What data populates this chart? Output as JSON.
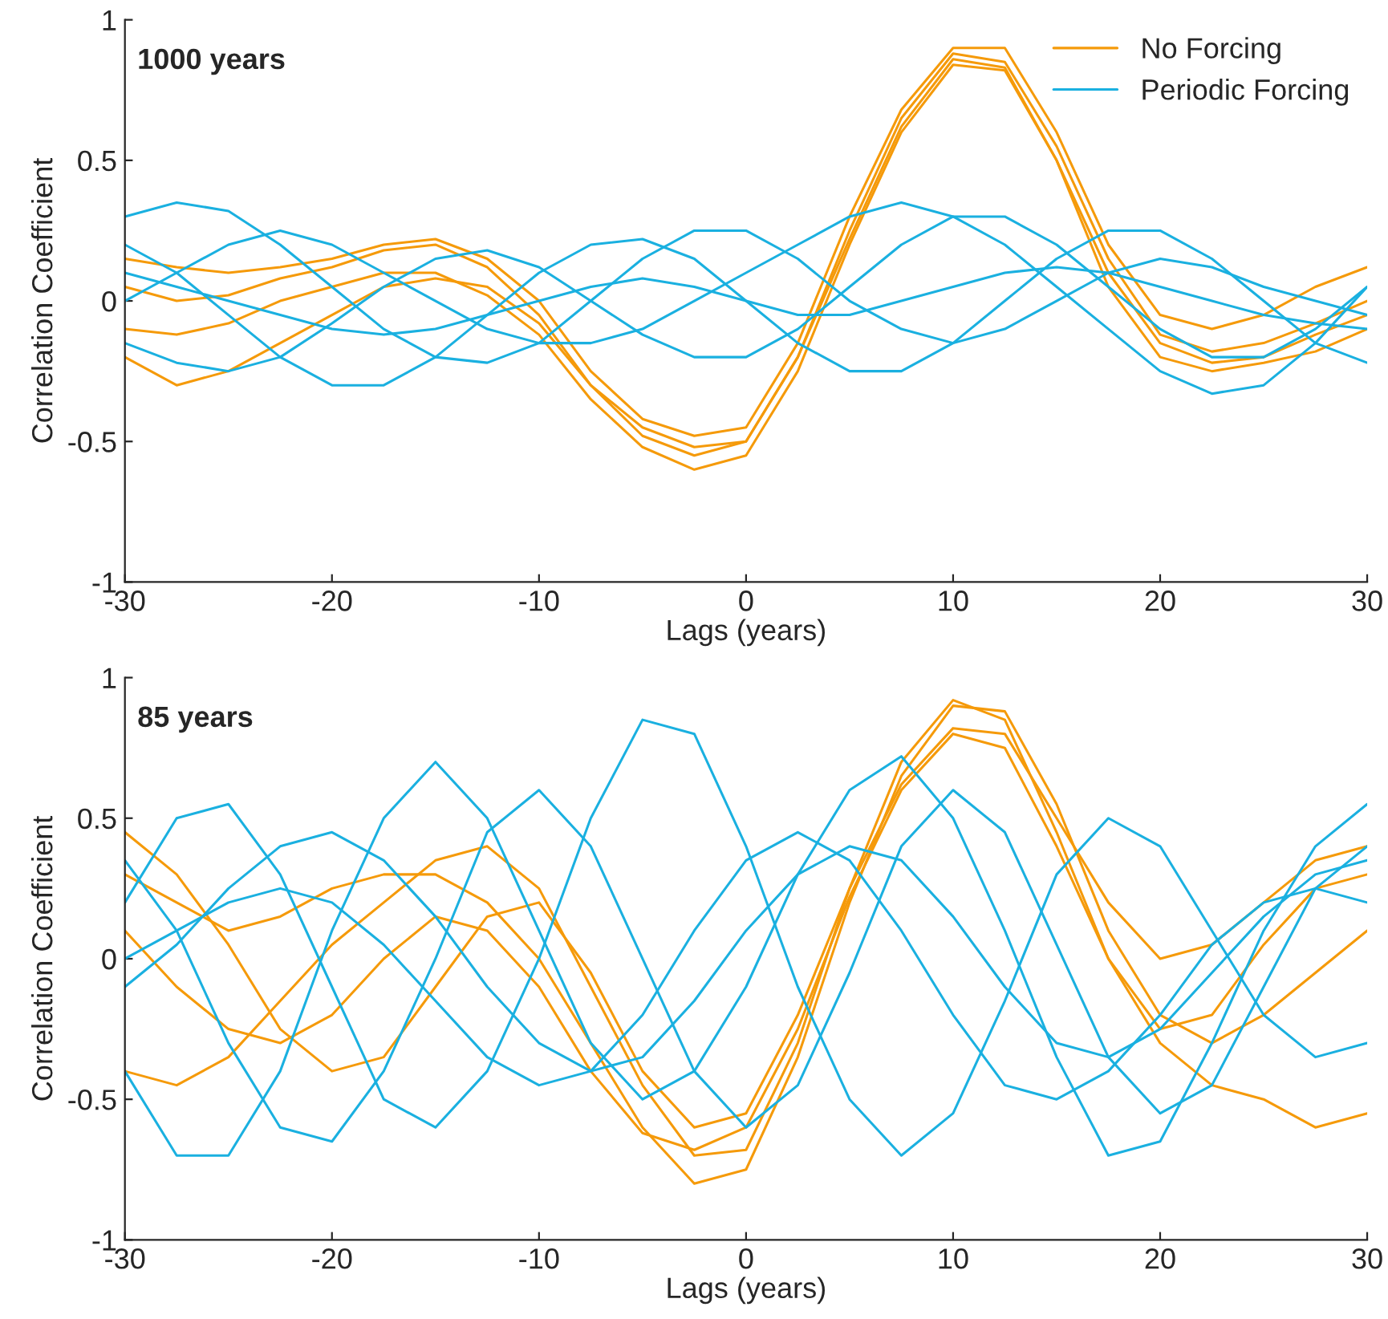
{
  "chart_data": [
    {
      "type": "line",
      "annotations": [
        "1000 years"
      ],
      "xlabel": "Lags (years)",
      "ylabel": "Correlation Coefficient",
      "xlim": [
        -30,
        30
      ],
      "ylim": [
        -1,
        1
      ],
      "xticks": [
        -30,
        -20,
        -10,
        0,
        10,
        20,
        30
      ],
      "yticks": [
        -1,
        -0.5,
        0,
        0.5,
        1
      ],
      "grid": false,
      "legend": "top right",
      "line_style": "solid",
      "x": [
        -30,
        -27.5,
        -25,
        -22.5,
        -20,
        -17.5,
        -15,
        -12.5,
        -10,
        -7.5,
        -5,
        -2.5,
        0,
        2.5,
        5,
        7.5,
        10,
        12.5,
        15,
        17.5,
        20,
        22.5,
        25,
        27.5,
        30
      ],
      "series": [
        {
          "name": "No Forcing",
          "color": "#f59a0a",
          "values": [
            0.05,
            0.0,
            0.02,
            0.08,
            0.12,
            0.18,
            0.2,
            0.12,
            -0.05,
            -0.3,
            -0.48,
            -0.55,
            -0.5,
            -0.2,
            0.25,
            0.65,
            0.88,
            0.85,
            0.55,
            0.15,
            -0.12,
            -0.18,
            -0.15,
            -0.08,
            0.0
          ]
        },
        {
          "color": "#f59a0a",
          "values": [
            -0.1,
            -0.12,
            -0.08,
            0.0,
            0.05,
            0.1,
            0.1,
            0.02,
            -0.12,
            -0.35,
            -0.52,
            -0.6,
            -0.55,
            -0.25,
            0.2,
            0.6,
            0.84,
            0.82,
            0.5,
            0.1,
            -0.15,
            -0.22,
            -0.2,
            -0.12,
            -0.05
          ]
        },
        {
          "color": "#f59a0a",
          "values": [
            0.15,
            0.12,
            0.1,
            0.12,
            0.15,
            0.2,
            0.22,
            0.15,
            0.0,
            -0.25,
            -0.42,
            -0.48,
            -0.45,
            -0.15,
            0.3,
            0.68,
            0.9,
            0.9,
            0.6,
            0.2,
            -0.05,
            -0.1,
            -0.05,
            0.05,
            0.12
          ]
        },
        {
          "color": "#f59a0a",
          "values": [
            -0.2,
            -0.3,
            -0.25,
            -0.15,
            -0.05,
            0.05,
            0.08,
            0.05,
            -0.08,
            -0.3,
            -0.45,
            -0.52,
            -0.5,
            -0.2,
            0.22,
            0.62,
            0.86,
            0.83,
            0.5,
            0.05,
            -0.2,
            -0.25,
            -0.22,
            -0.18,
            -0.1
          ]
        },
        {
          "name": "Periodic Forcing",
          "color": "#1ab0e0",
          "values": [
            0.3,
            0.35,
            0.32,
            0.2,
            0.05,
            -0.1,
            -0.2,
            -0.22,
            -0.15,
            0.0,
            0.15,
            0.25,
            0.25,
            0.15,
            0.0,
            -0.1,
            -0.15,
            -0.1,
            0.0,
            0.1,
            0.15,
            0.12,
            0.05,
            0.0,
            -0.05
          ]
        },
        {
          "color": "#1ab0e0",
          "values": [
            -0.15,
            -0.22,
            -0.25,
            -0.2,
            -0.08,
            0.05,
            0.15,
            0.18,
            0.12,
            0.0,
            -0.12,
            -0.2,
            -0.2,
            -0.1,
            0.05,
            0.2,
            0.3,
            0.3,
            0.2,
            0.05,
            -0.1,
            -0.2,
            -0.2,
            -0.1,
            0.05
          ]
        },
        {
          "color": "#1ab0e0",
          "values": [
            0.1,
            0.05,
            0.0,
            -0.05,
            -0.1,
            -0.12,
            -0.1,
            -0.05,
            0.0,
            0.05,
            0.08,
            0.05,
            0.0,
            -0.05,
            -0.05,
            0.0,
            0.05,
            0.1,
            0.12,
            0.1,
            0.05,
            0.0,
            -0.05,
            -0.08,
            -0.1
          ]
        },
        {
          "color": "#1ab0e0",
          "values": [
            0.2,
            0.1,
            -0.05,
            -0.2,
            -0.3,
            -0.3,
            -0.2,
            -0.05,
            0.1,
            0.2,
            0.22,
            0.15,
            0.0,
            -0.15,
            -0.25,
            -0.25,
            -0.15,
            0.0,
            0.15,
            0.25,
            0.25,
            0.15,
            0.0,
            -0.15,
            -0.22
          ]
        },
        {
          "color": "#1ab0e0",
          "values": [
            0.0,
            0.1,
            0.2,
            0.25,
            0.2,
            0.1,
            0.0,
            -0.1,
            -0.15,
            -0.15,
            -0.1,
            0.0,
            0.1,
            0.2,
            0.3,
            0.35,
            0.3,
            0.2,
            0.05,
            -0.1,
            -0.25,
            -0.33,
            -0.3,
            -0.15,
            0.05
          ]
        }
      ]
    },
    {
      "type": "line",
      "annotations": [
        "85 years"
      ],
      "xlabel": "Lags (years)",
      "ylabel": "Correlation Coefficient",
      "xlim": [
        -30,
        30
      ],
      "ylim": [
        -1,
        1
      ],
      "xticks": [
        -30,
        -20,
        -10,
        0,
        10,
        20,
        30
      ],
      "yticks": [
        -1,
        -0.5,
        0,
        0.5,
        1
      ],
      "grid": false,
      "line_style": "solid",
      "x": [
        -30,
        -27.5,
        -25,
        -22.5,
        -20,
        -17.5,
        -15,
        -12.5,
        -10,
        -7.5,
        -5,
        -2.5,
        0,
        2.5,
        5,
        7.5,
        10,
        12.5,
        15,
        17.5,
        20,
        22.5,
        25,
        27.5,
        30
      ],
      "series": [
        {
          "color": "#f59a0a",
          "values": [
            0.3,
            0.2,
            0.1,
            0.15,
            0.25,
            0.3,
            0.3,
            0.2,
            0.0,
            -0.3,
            -0.6,
            -0.8,
            -0.75,
            -0.35,
            0.2,
            0.65,
            0.9,
            0.88,
            0.55,
            0.1,
            -0.2,
            -0.3,
            -0.2,
            -0.05,
            0.1
          ]
        },
        {
          "color": "#f59a0a",
          "values": [
            -0.4,
            -0.45,
            -0.35,
            -0.15,
            0.05,
            0.2,
            0.35,
            0.4,
            0.25,
            -0.1,
            -0.45,
            -0.7,
            -0.68,
            -0.3,
            0.25,
            0.7,
            0.92,
            0.85,
            0.45,
            0.0,
            -0.3,
            -0.45,
            -0.5,
            -0.6,
            -0.55
          ]
        },
        {
          "color": "#f59a0a",
          "values": [
            0.1,
            -0.1,
            -0.25,
            -0.3,
            -0.2,
            0.0,
            0.15,
            0.1,
            -0.1,
            -0.4,
            -0.62,
            -0.68,
            -0.6,
            -0.25,
            0.22,
            0.6,
            0.8,
            0.75,
            0.4,
            0.0,
            -0.25,
            -0.2,
            0.05,
            0.25,
            0.3
          ]
        },
        {
          "color": "#f59a0a",
          "values": [
            0.45,
            0.3,
            0.05,
            -0.25,
            -0.4,
            -0.35,
            -0.1,
            0.15,
            0.2,
            -0.05,
            -0.4,
            -0.6,
            -0.55,
            -0.2,
            0.25,
            0.62,
            0.82,
            0.8,
            0.5,
            0.2,
            0.0,
            0.05,
            0.2,
            0.35,
            0.4
          ]
        },
        {
          "color": "#1ab0e0",
          "values": [
            0.2,
            0.5,
            0.55,
            0.3,
            -0.1,
            -0.5,
            -0.6,
            -0.4,
            0.0,
            0.5,
            0.85,
            0.8,
            0.4,
            -0.1,
            -0.5,
            -0.7,
            -0.55,
            -0.15,
            0.3,
            0.5,
            0.4,
            0.1,
            -0.2,
            -0.35,
            -0.3
          ]
        },
        {
          "color": "#1ab0e0",
          "values": [
            -0.4,
            -0.7,
            -0.7,
            -0.4,
            0.1,
            0.5,
            0.7,
            0.5,
            0.1,
            -0.3,
            -0.5,
            -0.4,
            -0.1,
            0.3,
            0.6,
            0.72,
            0.5,
            0.1,
            -0.35,
            -0.7,
            -0.65,
            -0.3,
            0.1,
            0.4,
            0.55
          ]
        },
        {
          "color": "#1ab0e0",
          "values": [
            0.0,
            0.1,
            0.2,
            0.25,
            0.2,
            0.05,
            -0.15,
            -0.35,
            -0.45,
            -0.4,
            -0.2,
            0.1,
            0.35,
            0.45,
            0.35,
            0.1,
            -0.2,
            -0.45,
            -0.5,
            -0.4,
            -0.2,
            0.05,
            0.2,
            0.25,
            0.2
          ]
        },
        {
          "color": "#1ab0e0",
          "values": [
            0.35,
            0.1,
            -0.3,
            -0.6,
            -0.65,
            -0.4,
            0.0,
            0.45,
            0.6,
            0.4,
            0.0,
            -0.4,
            -0.6,
            -0.45,
            -0.05,
            0.4,
            0.6,
            0.45,
            0.05,
            -0.35,
            -0.55,
            -0.45,
            -0.1,
            0.25,
            0.4
          ]
        },
        {
          "color": "#1ab0e0",
          "values": [
            -0.1,
            0.05,
            0.25,
            0.4,
            0.45,
            0.35,
            0.15,
            -0.1,
            -0.3,
            -0.4,
            -0.35,
            -0.15,
            0.1,
            0.3,
            0.4,
            0.35,
            0.15,
            -0.1,
            -0.3,
            -0.35,
            -0.25,
            -0.05,
            0.15,
            0.3,
            0.35
          ]
        }
      ]
    }
  ]
}
